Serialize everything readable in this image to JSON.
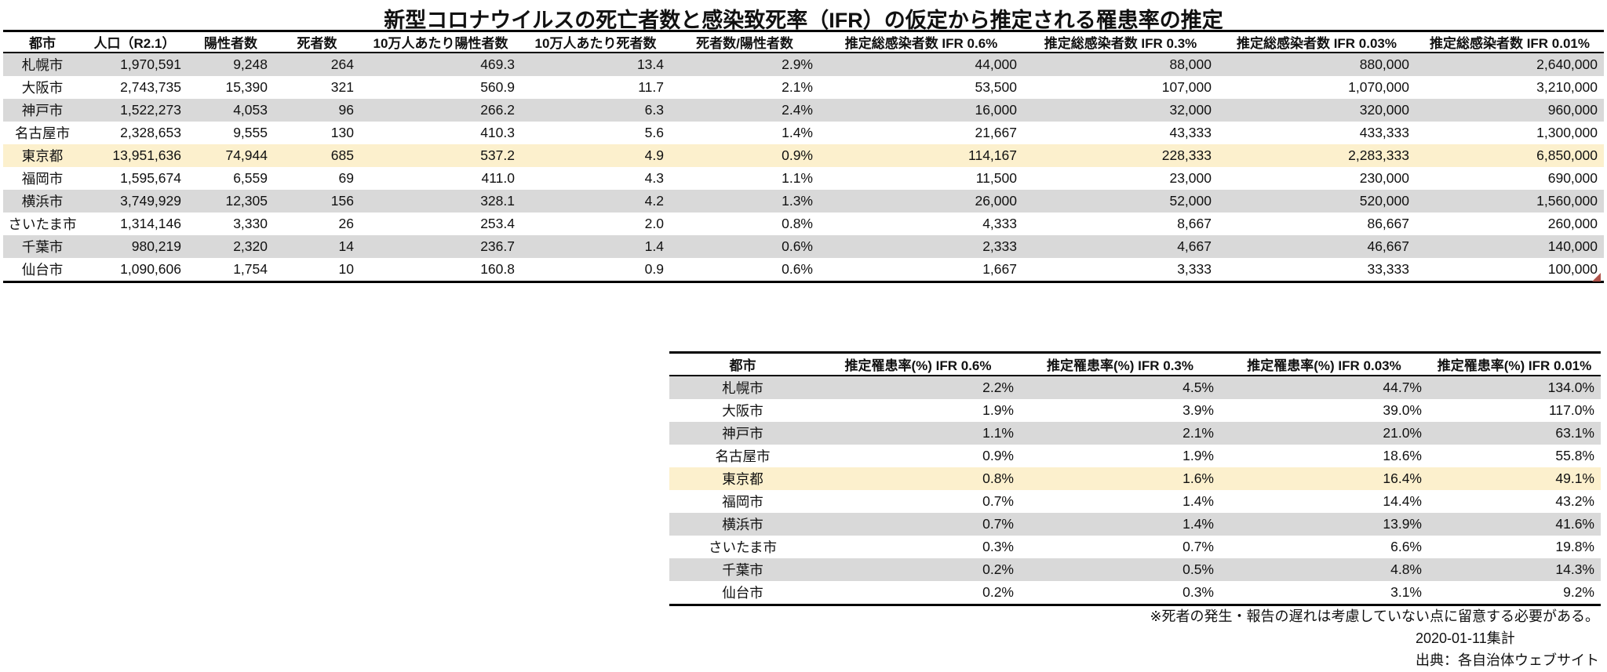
{
  "title": "新型コロナウイルスの死亡者数と感染致死率（IFR）の仮定から推定される罹患率の推定",
  "colors": {
    "stripe": "#d9d9d9",
    "highlight": "#fcf0cd",
    "border": "#000000",
    "marker": "#b0524a"
  },
  "table1": {
    "columns": [
      "都市",
      "人口（R2.1）",
      "陽性者数",
      "死者数",
      "10万人あたり陽性者数",
      "10万人あたり死者数",
      "死者数/陽性者数",
      "推定総感染者数 IFR 0.6%",
      "推定総感染者数 IFR 0.3%",
      "推定総感染者数 IFR 0.03%",
      "推定総感染者数 IFR 0.01%"
    ],
    "highlight_row_index": 4,
    "rows": [
      [
        "札幌市",
        "1,970,591",
        "9,248",
        "264",
        "469.3",
        "13.4",
        "2.9%",
        "44,000",
        "88,000",
        "880,000",
        "2,640,000"
      ],
      [
        "大阪市",
        "2,743,735",
        "15,390",
        "321",
        "560.9",
        "11.7",
        "2.1%",
        "53,500",
        "107,000",
        "1,070,000",
        "3,210,000"
      ],
      [
        "神戸市",
        "1,522,273",
        "4,053",
        "96",
        "266.2",
        "6.3",
        "2.4%",
        "16,000",
        "32,000",
        "320,000",
        "960,000"
      ],
      [
        "名古屋市",
        "2,328,653",
        "9,555",
        "130",
        "410.3",
        "5.6",
        "1.4%",
        "21,667",
        "43,333",
        "433,333",
        "1,300,000"
      ],
      [
        "東京都",
        "13,951,636",
        "74,944",
        "685",
        "537.2",
        "4.9",
        "0.9%",
        "114,167",
        "228,333",
        "2,283,333",
        "6,850,000"
      ],
      [
        "福岡市",
        "1,595,674",
        "6,559",
        "69",
        "411.0",
        "4.3",
        "1.1%",
        "11,500",
        "23,000",
        "230,000",
        "690,000"
      ],
      [
        "横浜市",
        "3,749,929",
        "12,305",
        "156",
        "328.1",
        "4.2",
        "1.3%",
        "26,000",
        "52,000",
        "520,000",
        "1,560,000"
      ],
      [
        "さいたま市",
        "1,314,146",
        "3,330",
        "26",
        "253.4",
        "2.0",
        "0.8%",
        "4,333",
        "8,667",
        "86,667",
        "260,000"
      ],
      [
        "千葉市",
        "980,219",
        "2,320",
        "14",
        "236.7",
        "1.4",
        "0.6%",
        "2,333",
        "4,667",
        "46,667",
        "140,000"
      ],
      [
        "仙台市",
        "1,090,606",
        "1,754",
        "10",
        "160.8",
        "0.9",
        "0.6%",
        "1,667",
        "3,333",
        "33,333",
        "100,000"
      ]
    ]
  },
  "table2": {
    "columns": [
      "都市",
      "推定罹患率(%) IFR 0.6%",
      "推定罹患率(%) IFR 0.3%",
      "推定罹患率(%) IFR 0.03%",
      "推定罹患率(%) IFR 0.01%"
    ],
    "highlight_row_index": 4,
    "rows": [
      [
        "札幌市",
        "2.2%",
        "4.5%",
        "44.7%",
        "134.0%"
      ],
      [
        "大阪市",
        "1.9%",
        "3.9%",
        "39.0%",
        "117.0%"
      ],
      [
        "神戸市",
        "1.1%",
        "2.1%",
        "21.0%",
        "63.1%"
      ],
      [
        "名古屋市",
        "0.9%",
        "1.9%",
        "18.6%",
        "55.8%"
      ],
      [
        "東京都",
        "0.8%",
        "1.6%",
        "16.4%",
        "49.1%"
      ],
      [
        "福岡市",
        "0.7%",
        "1.4%",
        "14.4%",
        "43.2%"
      ],
      [
        "横浜市",
        "0.7%",
        "1.4%",
        "13.9%",
        "41.6%"
      ],
      [
        "さいたま市",
        "0.3%",
        "0.7%",
        "6.6%",
        "19.8%"
      ],
      [
        "千葉市",
        "0.2%",
        "0.5%",
        "4.8%",
        "14.3%"
      ],
      [
        "仙台市",
        "0.2%",
        "0.3%",
        "3.1%",
        "9.2%"
      ]
    ]
  },
  "footer": {
    "note": "※死者の発生・報告の遅れは考慮していない点に留意する必要がある。",
    "date": "2020-01-11集計",
    "source": "出典：各自治体ウェブサイト"
  }
}
